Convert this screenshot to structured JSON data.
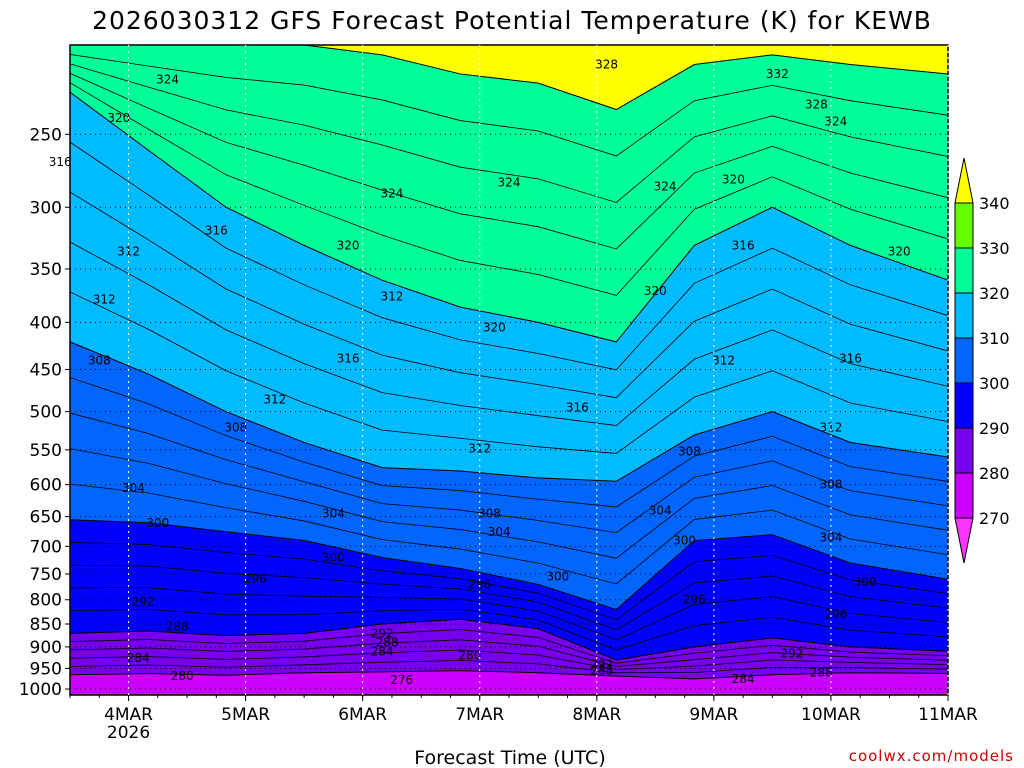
{
  "chart_data": {
    "type": "heatmap",
    "title": "2026030312 GFS Forecast Potential Temperature (K) for KEWB",
    "xlabel": "Forecast Time (UTC)",
    "ylabel": "",
    "x_ticks": [
      {
        "label": "4MAR",
        "sub": "2026",
        "hours": 12
      },
      {
        "label": "5MAR",
        "sub": "",
        "hours": 36
      },
      {
        "label": "6MAR",
        "sub": "",
        "hours": 60
      },
      {
        "label": "7MAR",
        "sub": "",
        "hours": 84
      },
      {
        "label": "8MAR",
        "sub": "",
        "hours": 108
      },
      {
        "label": "9MAR",
        "sub": "",
        "hours": 132
      },
      {
        "label": "10MAR",
        "sub": "",
        "hours": 156
      },
      {
        "label": "11MAR",
        "sub": "",
        "hours": 180
      }
    ],
    "x_range_hours": [
      0,
      180
    ],
    "y_axis": "pressure (hPa)",
    "y_ticks": [
      250,
      300,
      350,
      400,
      450,
      500,
      550,
      600,
      650,
      700,
      750,
      800,
      850,
      900,
      950,
      1000
    ],
    "y_range": [
      200,
      1015
    ],
    "colorbar": {
      "levels": [
        270,
        280,
        290,
        300,
        310,
        320,
        330,
        340
      ],
      "labels": [
        "340",
        "330",
        "320",
        "310",
        "300",
        "290",
        "280",
        "270"
      ],
      "colors": [
        "#ff33ff",
        "#cc00ff",
        "#7700ee",
        "#0000ff",
        "#0066ff",
        "#00bbff",
        "#00ff99",
        "#66ff00",
        "#ffff00"
      ]
    },
    "series": [
      {
        "theta": 280,
        "pressure": [
          965,
          962,
          966,
          960,
          958,
          955,
          960,
          968,
          975,
          965,
          960,
          962
        ]
      },
      {
        "theta": 290,
        "pressure": [
          870,
          865,
          875,
          870,
          850,
          840,
          860,
          930,
          900,
          880,
          900,
          910
        ]
      },
      {
        "theta": 300,
        "pressure": [
          655,
          660,
          675,
          690,
          720,
          740,
          770,
          820,
          690,
          680,
          730,
          760
        ]
      },
      {
        "theta": 310,
        "pressure": [
          420,
          455,
          500,
          540,
          575,
          580,
          590,
          595,
          530,
          500,
          540,
          560
        ]
      },
      {
        "theta": 320,
        "pressure": [
          225,
          260,
          300,
          330,
          360,
          385,
          400,
          420,
          330,
          300,
          330,
          360
        ]
      },
      {
        "theta": 330,
        "pressure": [
          200,
          200,
          200,
          200,
          205,
          215,
          220,
          235,
          210,
          205,
          210,
          215
        ]
      }
    ],
    "series_hours": [
      0,
      16,
      32,
      48,
      64,
      80,
      96,
      112,
      128,
      144,
      160,
      180
    ],
    "contour_labels": [
      {
        "text": "324",
        "hours": 20,
        "p": 218
      },
      {
        "text": "320",
        "hours": 10,
        "p": 240
      },
      {
        "text": "316",
        "hours": -2,
        "p": 268
      },
      {
        "text": "316",
        "hours": 30,
        "p": 318
      },
      {
        "text": "312",
        "hours": 12,
        "p": 335
      },
      {
        "text": "320",
        "hours": 57,
        "p": 330
      },
      {
        "text": "324",
        "hours": 66,
        "p": 290
      },
      {
        "text": "312",
        "hours": 66,
        "p": 375
      },
      {
        "text": "320",
        "hours": 87,
        "p": 405
      },
      {
        "text": "324",
        "hours": 90,
        "p": 282
      },
      {
        "text": "328",
        "hours": 110,
        "p": 210
      },
      {
        "text": "332",
        "hours": 145,
        "p": 215
      },
      {
        "text": "328",
        "hours": 153,
        "p": 232
      },
      {
        "text": "324",
        "hours": 157,
        "p": 242
      },
      {
        "text": "324",
        "hours": 122,
        "p": 285
      },
      {
        "text": "320",
        "hours": 136,
        "p": 280
      },
      {
        "text": "316",
        "hours": 138,
        "p": 330
      },
      {
        "text": "320",
        "hours": 120,
        "p": 370
      },
      {
        "text": "320",
        "hours": 170,
        "p": 335
      },
      {
        "text": "312",
        "hours": 134,
        "p": 440
      },
      {
        "text": "316",
        "hours": 160,
        "p": 438
      },
      {
        "text": "316",
        "hours": 57,
        "p": 438
      },
      {
        "text": "312",
        "hours": 42,
        "p": 485
      },
      {
        "text": "308",
        "hours": 34,
        "p": 520
      },
      {
        "text": "316",
        "hours": 104,
        "p": 495
      },
      {
        "text": "312",
        "hours": 84,
        "p": 548
      },
      {
        "text": "312",
        "hours": 156,
        "p": 520
      },
      {
        "text": "308",
        "hours": 6,
        "p": 440
      },
      {
        "text": "312",
        "hours": 7,
        "p": 378
      },
      {
        "text": "304",
        "hours": 13,
        "p": 605
      },
      {
        "text": "308",
        "hours": 127,
        "p": 552
      },
      {
        "text": "308",
        "hours": 156,
        "p": 600
      },
      {
        "text": "304",
        "hours": 121,
        "p": 640
      },
      {
        "text": "304",
        "hours": 54,
        "p": 645
      },
      {
        "text": "300",
        "hours": 18,
        "p": 660
      },
      {
        "text": "308",
        "hours": 86,
        "p": 645
      },
      {
        "text": "304",
        "hours": 88,
        "p": 675
      },
      {
        "text": "304",
        "hours": 156,
        "p": 685
      },
      {
        "text": "300",
        "hours": 126,
        "p": 690
      },
      {
        "text": "300",
        "hours": 54,
        "p": 720
      },
      {
        "text": "296",
        "hours": 38,
        "p": 760
      },
      {
        "text": "300",
        "hours": 100,
        "p": 755
      },
      {
        "text": "296",
        "hours": 84,
        "p": 770
      },
      {
        "text": "300",
        "hours": 163,
        "p": 765
      },
      {
        "text": "296",
        "hours": 128,
        "p": 800
      },
      {
        "text": "296",
        "hours": 157,
        "p": 830
      },
      {
        "text": "292",
        "hours": 15,
        "p": 805
      },
      {
        "text": "288",
        "hours": 22,
        "p": 855
      },
      {
        "text": "292",
        "hours": 64,
        "p": 870
      },
      {
        "text": "288",
        "hours": 65,
        "p": 890
      },
      {
        "text": "284",
        "hours": 64,
        "p": 910
      },
      {
        "text": "280",
        "hours": 82,
        "p": 920
      },
      {
        "text": "292",
        "hours": 148,
        "p": 915
      },
      {
        "text": "284",
        "hours": 14,
        "p": 925
      },
      {
        "text": "292",
        "hours": 109,
        "p": 940
      },
      {
        "text": "288",
        "hours": 109,
        "p": 955
      },
      {
        "text": "284",
        "hours": 138,
        "p": 975
      },
      {
        "text": "288",
        "hours": 154,
        "p": 960
      },
      {
        "text": "280",
        "hours": 23,
        "p": 968
      },
      {
        "text": "276",
        "hours": 68,
        "p": 978
      }
    ],
    "surface_color": "#a0522d"
  },
  "credit": "coolwx.com/models"
}
